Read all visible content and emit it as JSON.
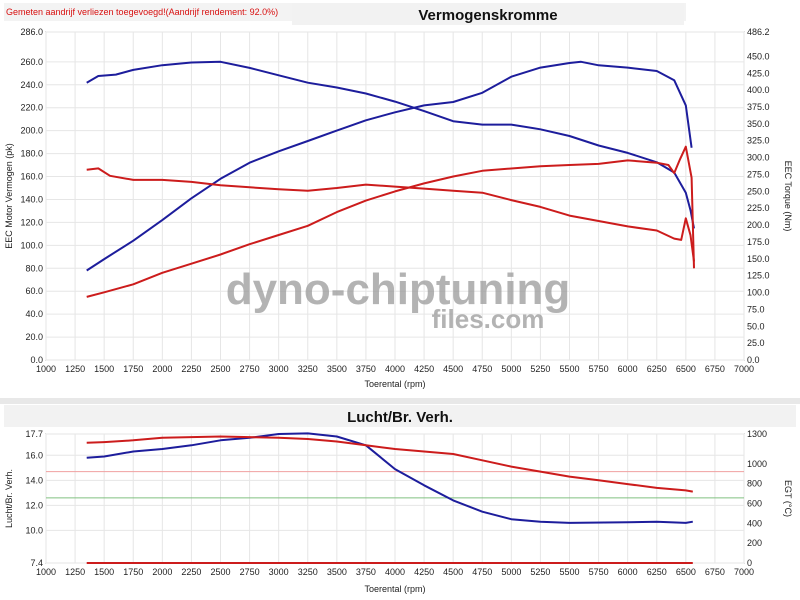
{
  "notice": "Gemeten aandrijf verliezen toegevoegd!(Aandrijf rendement: 92.0%)",
  "watermark": {
    "line1": "dyno-chiptuning",
    "line2": "files.com"
  },
  "colors": {
    "blue": "#1d1d9c",
    "red": "#cc1c1c",
    "grid": "#e6e6e6",
    "refred": "#f0a0a0",
    "refgreen": "#80c080"
  },
  "chart_data": [
    {
      "type": "line",
      "title": "Vermogenskromme",
      "xlabel": "Toerental (rpm)",
      "ylabel": "EEC Motor Vermogen (pk)",
      "y2label": "EEC Torque (Nm)",
      "xlim": [
        1000,
        7000
      ],
      "ylim": [
        0,
        286
      ],
      "y2lim": [
        0,
        486.2
      ],
      "xticks": [
        "1000",
        "1250",
        "1500",
        "1750",
        "2000",
        "2250",
        "2500",
        "2750",
        "3000",
        "3250",
        "3500",
        "3750",
        "4000",
        "4250",
        "4500",
        "4750",
        "5000",
        "5250",
        "5500",
        "5750",
        "6000",
        "6250",
        "6500",
        "6750",
        "7000"
      ],
      "yticks": [
        "0.0",
        "20.0",
        "40.0",
        "60.0",
        "80.0",
        "100.0",
        "120.0",
        "140.0",
        "160.0",
        "180.0",
        "200.0",
        "220.0",
        "240.0",
        "260.0",
        "286.0"
      ],
      "y2ticks": [
        "0.0",
        "25.0",
        "50.0",
        "75.0",
        "100.0",
        "125.0",
        "150.0",
        "175.0",
        "200.0",
        "225.0",
        "250.0",
        "275.0",
        "300.0",
        "325.0",
        "350.0",
        "375.0",
        "400.0",
        "425.0",
        "450.0",
        "486.2"
      ],
      "series": [
        {
          "color": "#1d1d9c",
          "axis": "left",
          "points": [
            [
              1350,
              78
            ],
            [
              1500,
              88
            ],
            [
              1750,
              104
            ],
            [
              2000,
              122
            ],
            [
              2250,
              141
            ],
            [
              2500,
              158
            ],
            [
              2750,
              172
            ],
            [
              3000,
              182
            ],
            [
              3250,
              191
            ],
            [
              3500,
              200
            ],
            [
              3750,
              209
            ],
            [
              4000,
              216
            ],
            [
              4250,
              222
            ],
            [
              4500,
              225
            ],
            [
              4750,
              233
            ],
            [
              5000,
              247
            ],
            [
              5250,
              255
            ],
            [
              5500,
              259
            ],
            [
              5600,
              260
            ],
            [
              5750,
              257
            ],
            [
              6000,
              255
            ],
            [
              6250,
              252
            ],
            [
              6400,
              244
            ],
            [
              6450,
              233
            ],
            [
              6500,
              222
            ],
            [
              6550,
              185
            ]
          ]
        },
        {
          "color": "#1d1d9c",
          "axis": "right",
          "points": [
            [
              1350,
              411
            ],
            [
              1450,
              421
            ],
            [
              1600,
              423
            ],
            [
              1750,
              430
            ],
            [
              2000,
              437
            ],
            [
              2250,
              441
            ],
            [
              2500,
              442
            ],
            [
              2750,
              433
            ],
            [
              3000,
              422
            ],
            [
              3250,
              411
            ],
            [
              3500,
              404
            ],
            [
              3750,
              395
            ],
            [
              4000,
              383
            ],
            [
              4250,
              369
            ],
            [
              4500,
              354
            ],
            [
              4750,
              349
            ],
            [
              5000,
              349
            ],
            [
              5250,
              342
            ],
            [
              5500,
              332
            ],
            [
              5750,
              318
            ],
            [
              6000,
              307
            ],
            [
              6250,
              293
            ],
            [
              6400,
              278
            ],
            [
              6500,
              248
            ],
            [
              6540,
              222
            ],
            [
              6570,
              195
            ]
          ]
        },
        {
          "color": "#cc1c1c",
          "axis": "left",
          "points": [
            [
              1350,
              55
            ],
            [
              1500,
              59
            ],
            [
              1750,
              66
            ],
            [
              2000,
              76
            ],
            [
              2250,
              84
            ],
            [
              2500,
              92
            ],
            [
              2750,
              101
            ],
            [
              3000,
              109
            ],
            [
              3250,
              117
            ],
            [
              3500,
              129
            ],
            [
              3750,
              139
            ],
            [
              4000,
              147
            ],
            [
              4250,
              154
            ],
            [
              4500,
              160
            ],
            [
              4750,
              165
            ],
            [
              5000,
              167
            ],
            [
              5250,
              169
            ],
            [
              5500,
              170
            ],
            [
              5750,
              171
            ],
            [
              6000,
              174
            ],
            [
              6250,
              172
            ],
            [
              6350,
              170
            ],
            [
              6400,
              163
            ],
            [
              6450,
              175
            ],
            [
              6500,
              186
            ],
            [
              6550,
              159
            ],
            [
              6570,
              80
            ]
          ]
        },
        {
          "color": "#cc1c1c",
          "axis": "right",
          "points": [
            [
              1350,
              282
            ],
            [
              1450,
              284
            ],
            [
              1550,
              273
            ],
            [
              1750,
              267
            ],
            [
              2000,
              267
            ],
            [
              2250,
              264
            ],
            [
              2500,
              259
            ],
            [
              2750,
              256
            ],
            [
              3000,
              253
            ],
            [
              3250,
              251
            ],
            [
              3500,
              255
            ],
            [
              3750,
              260
            ],
            [
              4000,
              257
            ],
            [
              4250,
              254
            ],
            [
              4500,
              251
            ],
            [
              4750,
              248
            ],
            [
              5000,
              237
            ],
            [
              5250,
              227
            ],
            [
              5500,
              214
            ],
            [
              5750,
              206
            ],
            [
              6000,
              198
            ],
            [
              6250,
              192
            ],
            [
              6400,
              180
            ],
            [
              6460,
              178
            ],
            [
              6500,
              210
            ],
            [
              6540,
              185
            ],
            [
              6570,
              146
            ]
          ]
        }
      ]
    },
    {
      "type": "line",
      "title": "Lucht/Br. Verh.",
      "xlabel": "Toerental (rpm)",
      "ylabel": "Lucht/Br. Verh.",
      "y2label": "EGT (°C)",
      "xlim": [
        1000,
        7000
      ],
      "ylim": [
        7.4,
        17.7
      ],
      "y2lim": [
        0,
        1300
      ],
      "xticks": [
        "1000",
        "1250",
        "1500",
        "1750",
        "2000",
        "2250",
        "2500",
        "2750",
        "3000",
        "3250",
        "3500",
        "3750",
        "4000",
        "4250",
        "4500",
        "4750",
        "5000",
        "5250",
        "5500",
        "5750",
        "6000",
        "6250",
        "6500",
        "6750",
        "7000"
      ],
      "yticks": [
        "7.4",
        "10.0",
        "12.0",
        "14.0",
        "16.0",
        "17.7"
      ],
      "y2ticks": [
        "0",
        "200",
        "400",
        "600",
        "800",
        "1000",
        "1300"
      ],
      "reference_lines": [
        {
          "y": 14.7,
          "color": "#f0a0a0"
        },
        {
          "y": 12.6,
          "color": "#80c080"
        }
      ],
      "series": [
        {
          "color": "#1d1d9c",
          "axis": "left",
          "points": [
            [
              1350,
              15.8
            ],
            [
              1500,
              15.9
            ],
            [
              1750,
              16.3
            ],
            [
              2000,
              16.5
            ],
            [
              2250,
              16.8
            ],
            [
              2500,
              17.2
            ],
            [
              2750,
              17.4
            ],
            [
              3000,
              17.7
            ],
            [
              3250,
              17.75
            ],
            [
              3500,
              17.5
            ],
            [
              3750,
              16.8
            ],
            [
              4000,
              14.9
            ],
            [
              4250,
              13.6
            ],
            [
              4500,
              12.4
            ],
            [
              4750,
              11.5
            ],
            [
              5000,
              10.9
            ],
            [
              5250,
              10.7
            ],
            [
              5500,
              10.6
            ],
            [
              6000,
              10.65
            ],
            [
              6250,
              10.7
            ],
            [
              6500,
              10.6
            ],
            [
              6560,
              10.7
            ]
          ]
        },
        {
          "color": "#cc1c1c",
          "axis": "left",
          "points": [
            [
              1350,
              17.0
            ],
            [
              1500,
              17.05
            ],
            [
              1750,
              17.2
            ],
            [
              2000,
              17.4
            ],
            [
              2250,
              17.45
            ],
            [
              2500,
              17.5
            ],
            [
              2750,
              17.45
            ],
            [
              3000,
              17.4
            ],
            [
              3250,
              17.3
            ],
            [
              3500,
              17.1
            ],
            [
              3750,
              16.8
            ],
            [
              4000,
              16.5
            ],
            [
              4250,
              16.3
            ],
            [
              4500,
              16.1
            ],
            [
              4750,
              15.6
            ],
            [
              5000,
              15.1
            ],
            [
              5250,
              14.7
            ],
            [
              5500,
              14.3
            ],
            [
              5750,
              14.0
            ],
            [
              6000,
              13.7
            ],
            [
              6250,
              13.4
            ],
            [
              6500,
              13.2
            ],
            [
              6560,
              13.1
            ]
          ]
        },
        {
          "color": "#cc1c1c",
          "axis": "left",
          "points": [
            [
              1350,
              7.4
            ],
            [
              6560,
              7.4
            ]
          ]
        }
      ]
    }
  ]
}
